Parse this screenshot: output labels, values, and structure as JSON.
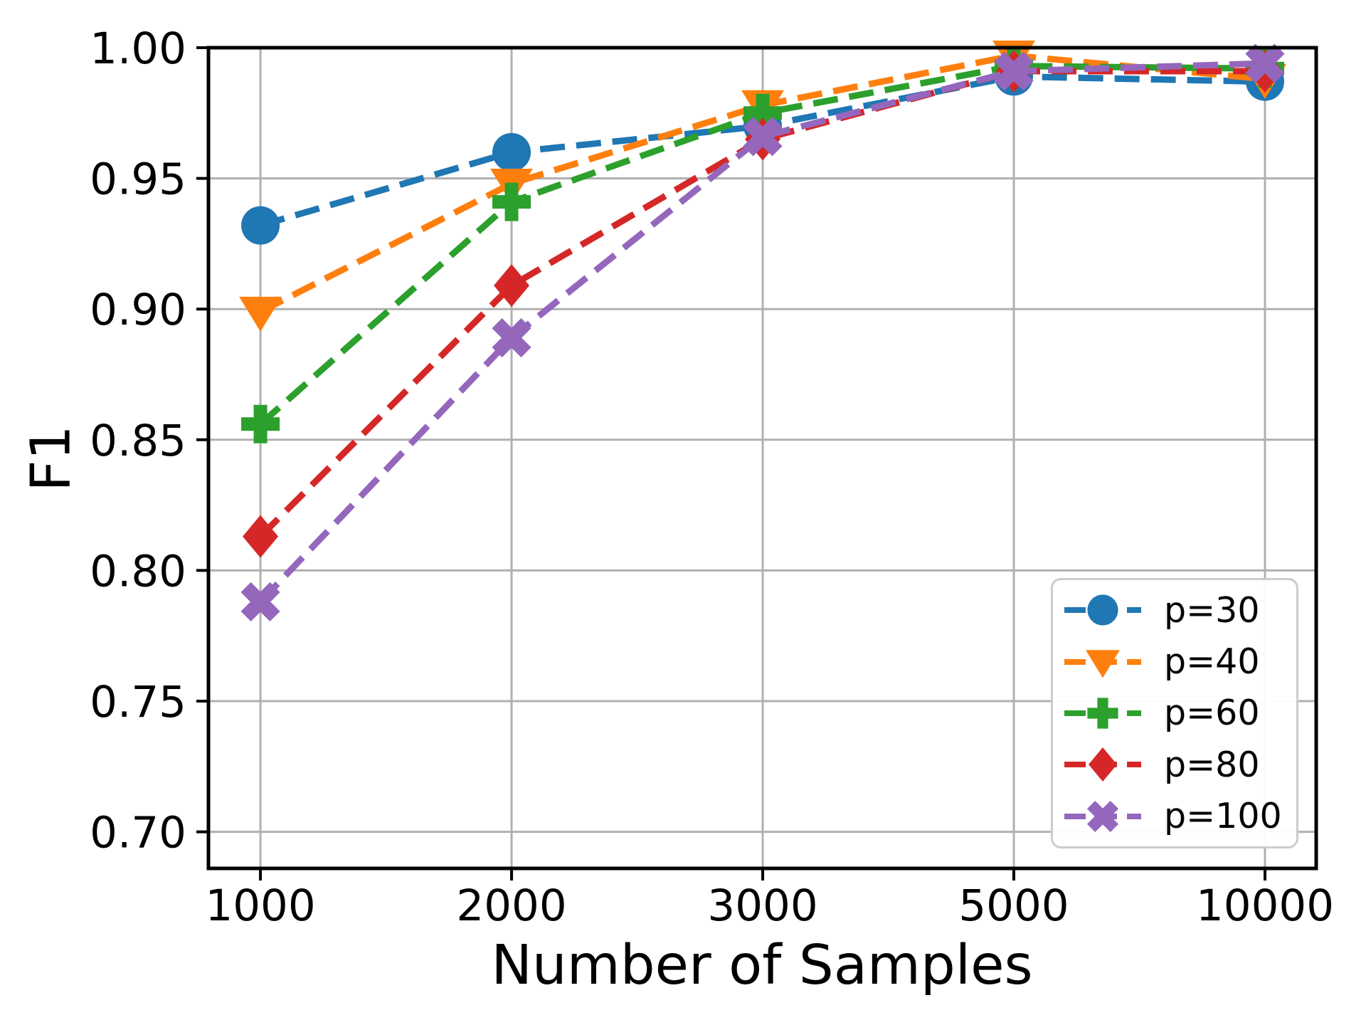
{
  "chart_data": {
    "type": "line",
    "title": "",
    "xlabel": "Number of Samples",
    "ylabel": "F1",
    "x_categories": [
      "1000",
      "2000",
      "3000",
      "5000",
      "10000"
    ],
    "x_scale": "categorical-even-spacing",
    "yticks": [
      1.0,
      0.95,
      0.9,
      0.85,
      0.8,
      0.75,
      0.7
    ],
    "ytick_labels": [
      "1.00",
      "0.95",
      "0.90",
      "0.85",
      "0.80",
      "0.75",
      "0.70"
    ],
    "ylim": [
      0.686,
      1.0
    ],
    "grid": true,
    "grid_color": "#b0b0b0",
    "line_style": "dashed",
    "legend_position": "lower right",
    "series": [
      {
        "name": "p=30",
        "color": "#1f77b4",
        "marker": "circle",
        "values": [
          0.932,
          0.96,
          0.97,
          0.989,
          0.987
        ]
      },
      {
        "name": "p=40",
        "color": "#ff7f0e",
        "marker": "triangle-down",
        "values": [
          0.899,
          0.948,
          0.978,
          0.997,
          0.988
        ]
      },
      {
        "name": "p=60",
        "color": "#2ca02c",
        "marker": "plus",
        "values": [
          0.856,
          0.941,
          0.975,
          0.993,
          0.992
        ]
      },
      {
        "name": "p=80",
        "color": "#d62728",
        "marker": "diamond",
        "values": [
          0.813,
          0.909,
          0.965,
          0.991,
          0.991
        ]
      },
      {
        "name": "p=100",
        "color": "#9467bd",
        "marker": "x",
        "values": [
          0.788,
          0.889,
          0.966,
          0.991,
          0.994
        ]
      }
    ]
  }
}
